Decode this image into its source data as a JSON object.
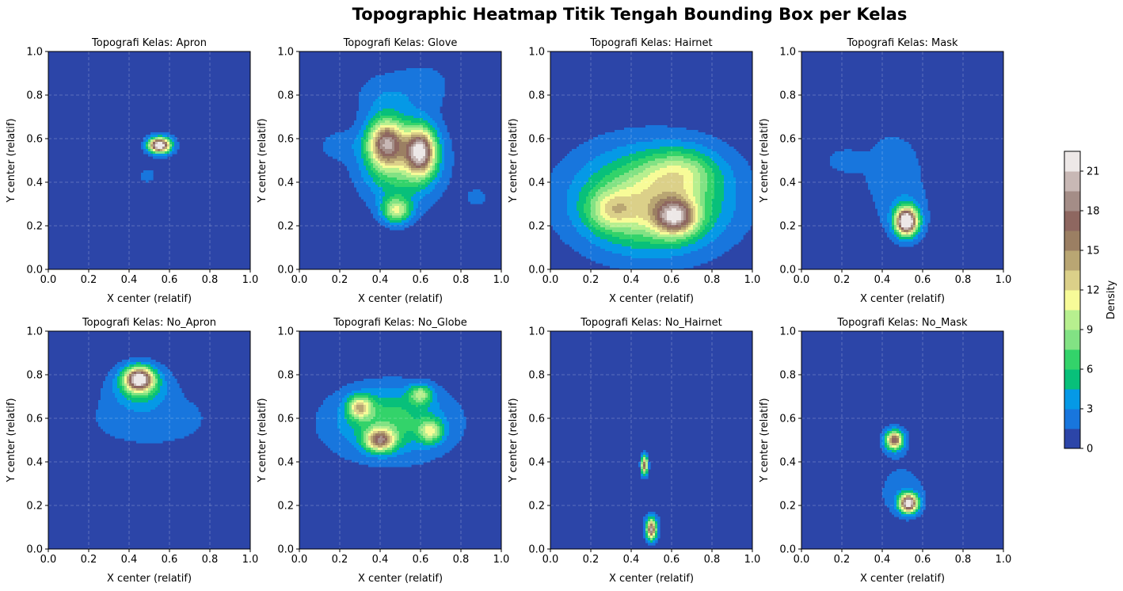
{
  "title": "Topographic Heatmap Titik Tengah Bounding Box per Kelas",
  "colorbar": {
    "label": "Density",
    "ticks": [
      0,
      3,
      6,
      9,
      12,
      15,
      18,
      21
    ],
    "levels": [
      0,
      1.5,
      3,
      4.5,
      6,
      7.5,
      9,
      10.5,
      12,
      13.5,
      15,
      16.5,
      18,
      19.5,
      21,
      22.5
    ],
    "colormap": [
      "#2c45a8",
      "#1876dd",
      "#0599e6",
      "#08c07a",
      "#33d36a",
      "#82e284",
      "#b7ef8f",
      "#f7fb98",
      "#dbd089",
      "#b9a673",
      "#9b7f63",
      "#8e6760",
      "#a48d87",
      "#c8b8b5",
      "#ede8e7"
    ]
  },
  "chart_data": [
    {
      "type": "heatmap",
      "title": "Topografi Kelas: Apron",
      "xlabel": "X center (relatif)",
      "ylabel": "Y center (relatif)",
      "xlim": [
        0,
        1
      ],
      "ylim": [
        0,
        1
      ],
      "grid": true,
      "xticks": [
        "0.0",
        "0.2",
        "0.4",
        "0.6",
        "0.8",
        "1.0"
      ],
      "yticks": [
        "0.0",
        "0.2",
        "0.4",
        "0.6",
        "0.8",
        "1.0"
      ],
      "density_peaks": [
        {
          "x": 0.55,
          "y": 0.57,
          "sx": 0.035,
          "sy": 0.022,
          "peak": 23
        },
        {
          "x": 0.49,
          "y": 0.43,
          "sx": 0.03,
          "sy": 0.025,
          "peak": 2.5
        },
        {
          "x": 0.56,
          "y": 0.57,
          "sx": 0.07,
          "sy": 0.05,
          "peak": 2
        }
      ]
    },
    {
      "type": "heatmap",
      "title": "Topografi Kelas: Glove",
      "xlabel": "X center (relatif)",
      "ylabel": "Y center (relatif)",
      "xlim": [
        0,
        1
      ],
      "ylim": [
        0,
        1
      ],
      "grid": true,
      "xticks": [
        "0.0",
        "0.2",
        "0.4",
        "0.6",
        "0.8",
        "1.0"
      ],
      "yticks": [
        "0.0",
        "0.2",
        "0.4",
        "0.6",
        "0.8",
        "1.0"
      ],
      "density_peaks": [
        {
          "x": 0.43,
          "y": 0.58,
          "sx": 0.06,
          "sy": 0.07,
          "peak": 14
        },
        {
          "x": 0.6,
          "y": 0.54,
          "sx": 0.05,
          "sy": 0.07,
          "peak": 17
        },
        {
          "x": 0.48,
          "y": 0.27,
          "sx": 0.05,
          "sy": 0.04,
          "peak": 9
        },
        {
          "x": 0.5,
          "y": 0.5,
          "sx": 0.14,
          "sy": 0.14,
          "peak": 8
        },
        {
          "x": 0.4,
          "y": 0.8,
          "sx": 0.1,
          "sy": 0.08,
          "peak": 2
        },
        {
          "x": 0.62,
          "y": 0.85,
          "sx": 0.12,
          "sy": 0.09,
          "peak": 2
        },
        {
          "x": 0.88,
          "y": 0.33,
          "sx": 0.05,
          "sy": 0.04,
          "peak": 2
        },
        {
          "x": 0.18,
          "y": 0.57,
          "sx": 0.07,
          "sy": 0.05,
          "peak": 2
        }
      ]
    },
    {
      "type": "heatmap",
      "title": "Topografi Kelas: Hairnet",
      "xlabel": "X center (relatif)",
      "ylabel": "Y center (relatif)",
      "xlim": [
        0,
        1
      ],
      "ylim": [
        0,
        1
      ],
      "grid": true,
      "xticks": [
        "0.0",
        "0.2",
        "0.4",
        "0.6",
        "0.8",
        "1.0"
      ],
      "yticks": [
        "0.0",
        "0.2",
        "0.4",
        "0.6",
        "0.8",
        "1.0"
      ],
      "density_peaks": [
        {
          "x": 0.62,
          "y": 0.24,
          "sx": 0.07,
          "sy": 0.055,
          "peak": 13
        },
        {
          "x": 0.3,
          "y": 0.27,
          "sx": 0.08,
          "sy": 0.06,
          "peak": 5
        },
        {
          "x": 0.5,
          "y": 0.3,
          "sx": 0.22,
          "sy": 0.14,
          "peak": 9
        },
        {
          "x": 0.65,
          "y": 0.45,
          "sx": 0.12,
          "sy": 0.07,
          "peak": 5
        },
        {
          "x": 0.5,
          "y": 0.35,
          "sx": 0.36,
          "sy": 0.22,
          "peak": 3
        }
      ]
    },
    {
      "type": "heatmap",
      "title": "Topografi Kelas: Mask",
      "xlabel": "X center (relatif)",
      "ylabel": "Y center (relatif)",
      "xlim": [
        0,
        1
      ],
      "ylim": [
        0,
        1
      ],
      "grid": true,
      "xticks": [
        "0.0",
        "0.2",
        "0.4",
        "0.6",
        "0.8",
        "1.0"
      ],
      "yticks": [
        "0.0",
        "0.2",
        "0.4",
        "0.6",
        "0.8",
        "1.0"
      ],
      "density_peaks": [
        {
          "x": 0.52,
          "y": 0.22,
          "sx": 0.035,
          "sy": 0.04,
          "peak": 24
        },
        {
          "x": 0.52,
          "y": 0.23,
          "sx": 0.07,
          "sy": 0.08,
          "peak": 3
        },
        {
          "x": 0.45,
          "y": 0.45,
          "sx": 0.15,
          "sy": 0.18,
          "peak": 2.2
        },
        {
          "x": 0.2,
          "y": 0.5,
          "sx": 0.06,
          "sy": 0.04,
          "peak": 2
        }
      ]
    },
    {
      "type": "heatmap",
      "title": "Topografi Kelas: No_Apron",
      "xlabel": "X center (relatif)",
      "ylabel": "Y center (relatif)",
      "xlim": [
        0,
        1
      ],
      "ylim": [
        0,
        1
      ],
      "grid": true,
      "xticks": [
        "0.0",
        "0.2",
        "0.4",
        "0.6",
        "0.8",
        "1.0"
      ],
      "yticks": [
        "0.0",
        "0.2",
        "0.4",
        "0.6",
        "0.8",
        "1.0"
      ],
      "density_peaks": [
        {
          "x": 0.45,
          "y": 0.78,
          "sx": 0.045,
          "sy": 0.035,
          "peak": 19
        },
        {
          "x": 0.45,
          "y": 0.76,
          "sx": 0.09,
          "sy": 0.065,
          "peak": 6
        },
        {
          "x": 0.5,
          "y": 0.6,
          "sx": 0.28,
          "sy": 0.12,
          "peak": 2.3
        }
      ]
    },
    {
      "type": "heatmap",
      "title": "Topografi Kelas: No_Globe",
      "xlabel": "X center (relatif)",
      "ylabel": "Y center (relatif)",
      "xlim": [
        0,
        1
      ],
      "ylim": [
        0,
        1
      ],
      "grid": true,
      "xticks": [
        "0.0",
        "0.2",
        "0.4",
        "0.6",
        "0.8",
        "1.0"
      ],
      "yticks": [
        "0.0",
        "0.2",
        "0.4",
        "0.6",
        "0.8",
        "1.0"
      ],
      "density_peaks": [
        {
          "x": 0.4,
          "y": 0.5,
          "sx": 0.05,
          "sy": 0.035,
          "peak": 14
        },
        {
          "x": 0.3,
          "y": 0.65,
          "sx": 0.04,
          "sy": 0.035,
          "peak": 10
        },
        {
          "x": 0.65,
          "y": 0.54,
          "sx": 0.04,
          "sy": 0.035,
          "peak": 8
        },
        {
          "x": 0.6,
          "y": 0.71,
          "sx": 0.04,
          "sy": 0.03,
          "peak": 7
        },
        {
          "x": 0.45,
          "y": 0.6,
          "sx": 0.18,
          "sy": 0.1,
          "peak": 5
        },
        {
          "x": 0.45,
          "y": 0.55,
          "sx": 0.3,
          "sy": 0.16,
          "peak": 2
        }
      ]
    },
    {
      "type": "heatmap",
      "title": "Topografi Kelas: No_Hairnet",
      "xlabel": "X center (relatif)",
      "ylabel": "Y center (relatif)",
      "xlim": [
        0,
        1
      ],
      "ylim": [
        0,
        1
      ],
      "grid": true,
      "xticks": [
        "0.0",
        "0.2",
        "0.4",
        "0.6",
        "0.8",
        "1.0"
      ],
      "yticks": [
        "0.0",
        "0.2",
        "0.4",
        "0.6",
        "0.8",
        "1.0"
      ],
      "density_peaks": [
        {
          "x": 0.465,
          "y": 0.385,
          "sx": 0.011,
          "sy": 0.03,
          "peak": 17
        },
        {
          "x": 0.5,
          "y": 0.09,
          "sx": 0.015,
          "sy": 0.03,
          "peak": 16
        },
        {
          "x": 0.5,
          "y": 0.1,
          "sx": 0.03,
          "sy": 0.05,
          "peak": 4
        }
      ]
    },
    {
      "type": "heatmap",
      "title": "Topografi Kelas: No_Mask",
      "xlabel": "X center (relatif)",
      "ylabel": "Y center (relatif)",
      "xlim": [
        0,
        1
      ],
      "ylim": [
        0,
        1
      ],
      "grid": true,
      "xticks": [
        "0.0",
        "0.2",
        "0.4",
        "0.6",
        "0.8",
        "1.0"
      ],
      "yticks": [
        "0.0",
        "0.2",
        "0.4",
        "0.6",
        "0.8",
        "1.0"
      ],
      "density_peaks": [
        {
          "x": 0.46,
          "y": 0.5,
          "sx": 0.028,
          "sy": 0.028,
          "peak": 16
        },
        {
          "x": 0.53,
          "y": 0.21,
          "sx": 0.03,
          "sy": 0.028,
          "peak": 22
        },
        {
          "x": 0.5,
          "y": 0.26,
          "sx": 0.1,
          "sy": 0.1,
          "peak": 2.4
        },
        {
          "x": 0.46,
          "y": 0.5,
          "sx": 0.06,
          "sy": 0.06,
          "peak": 2
        }
      ]
    }
  ]
}
